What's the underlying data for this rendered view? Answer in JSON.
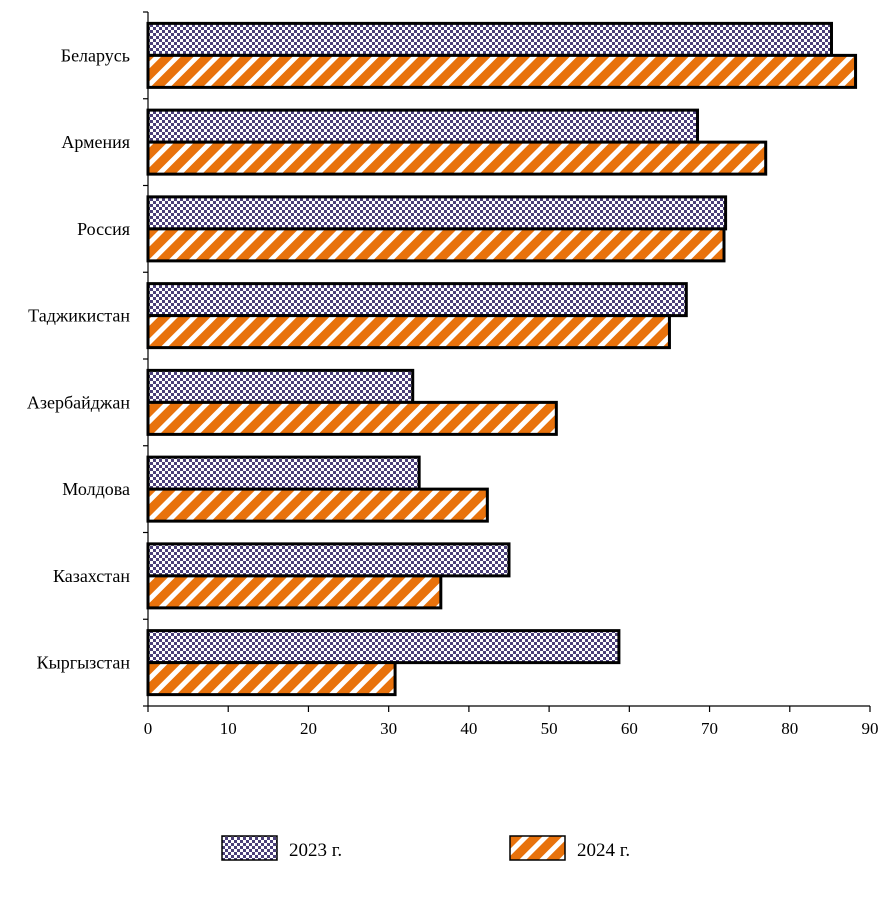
{
  "chart_data": {
    "type": "bar",
    "orientation": "horizontal",
    "title": "",
    "xlabel": "",
    "ylabel": "",
    "categories": [
      "Беларусь",
      "Армения",
      "Россия",
      "Таджикистан",
      "Азербайджан",
      "Молдова ",
      "Казахстан",
      "Кыргызстан"
    ],
    "series": [
      {
        "name": "2023 г.",
        "values": [
          85.2,
          68.5,
          72.0,
          67.1,
          33.0,
          33.8,
          45.0,
          58.7
        ],
        "color": "#4B3F7A",
        "pattern": "checkerboard"
      },
      {
        "name": "2024 г.",
        "values": [
          88.2,
          77.0,
          71.8,
          65.0,
          50.9,
          42.3,
          36.5,
          30.8
        ],
        "color": "#E8720C",
        "pattern": "diagonal-stripes"
      }
    ],
    "xlim": [
      0,
      90
    ],
    "xticks": [
      "0",
      "10",
      "20",
      "30",
      "40",
      "50",
      "60",
      "70",
      "80",
      "90"
    ],
    "grid": false,
    "legend_position": "bottom"
  }
}
